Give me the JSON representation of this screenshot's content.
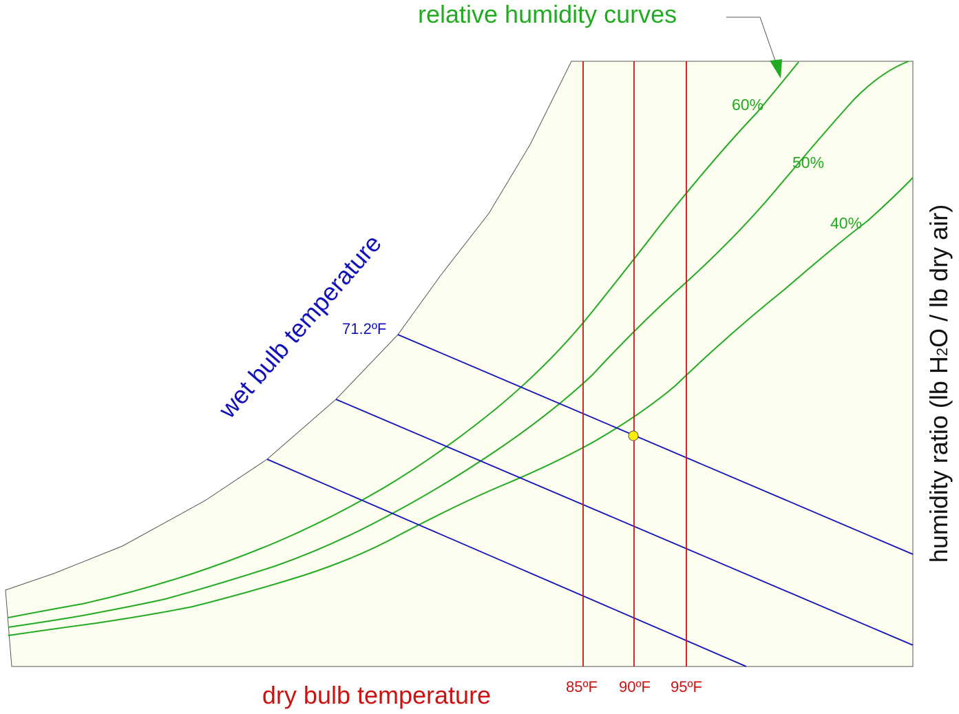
{
  "title": "relative humidity  curves",
  "labels": {
    "wet_bulb_axis": "wet bulb temperature",
    "dry_bulb_axis": "dry bulb temperature",
    "humidity_ratio_prefix": "humidity ratio (lb H",
    "humidity_ratio_sub": "2",
    "humidity_ratio_suffix": "O / lb dry air)",
    "wet_bulb_value": "71.2ºF"
  },
  "rh_curves": [
    {
      "label": "60%"
    },
    {
      "label": "50%"
    },
    {
      "label": "40%"
    }
  ],
  "dry_bulb_lines": [
    {
      "label": "85ºF"
    },
    {
      "label": "90ºF"
    },
    {
      "label": "95ºF"
    }
  ],
  "colors": {
    "rh": "#22aa22",
    "wet_bulb": "#1111bb",
    "dry_bulb": "#cc1111",
    "chart_fill": "#fdfdf0",
    "state_point": "#ffee00",
    "outline": "#333333"
  }
}
